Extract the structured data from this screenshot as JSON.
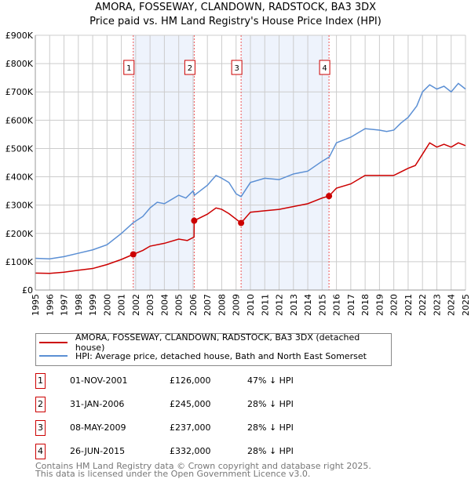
{
  "chart_data": {
    "type": "line",
    "title": "AMORA, FOSSEWAY, CLANDOWN, RADSTOCK, BA3 3DX",
    "subtitle": "Price paid vs. HM Land Registry's House Price Index (HPI)",
    "xlim": [
      1995,
      2025
    ],
    "ylim": [
      0,
      900000
    ],
    "y_ticks": [
      {
        "v": 0,
        "label": "£0"
      },
      {
        "v": 100000,
        "label": "£100K"
      },
      {
        "v": 200000,
        "label": "£200K"
      },
      {
        "v": 300000,
        "label": "£300K"
      },
      {
        "v": 400000,
        "label": "£400K"
      },
      {
        "v": 500000,
        "label": "£500K"
      },
      {
        "v": 600000,
        "label": "£600K"
      },
      {
        "v": 700000,
        "label": "£700K"
      },
      {
        "v": 800000,
        "label": "£800K"
      },
      {
        "v": 900000,
        "label": "£900K"
      }
    ],
    "x_ticks": [
      "1995",
      "1996",
      "1997",
      "1998",
      "1999",
      "2000",
      "2001",
      "2002",
      "2003",
      "2004",
      "2005",
      "2006",
      "2007",
      "2008",
      "2009",
      "2010",
      "2011",
      "2012",
      "2013",
      "2014",
      "2015",
      "2016",
      "2017",
      "2018",
      "2019",
      "2020",
      "2021",
      "2022",
      "2023",
      "2024",
      "2025"
    ],
    "grid": true,
    "series": [
      {
        "name": "AMORA, FOSSEWAY, CLANDOWN, RADSTOCK, BA3 3DX (detached house)",
        "color": "#cc0000",
        "x": [
          1995,
          1996,
          1997,
          1998,
          1999,
          2000,
          2001,
          2001.83,
          2002.5,
          2003,
          2004,
          2005,
          2005.6,
          2006.07,
          2006.08,
          2007,
          2007.6,
          2008,
          2008.5,
          2009.35,
          2010,
          2011,
          2012,
          2013,
          2014,
          2015,
          2015.48,
          2016,
          2017,
          2018,
          2019,
          2020,
          2021,
          2021.5,
          2022,
          2022.5,
          2023,
          2023.5,
          2024,
          2024.5,
          2025
        ],
        "y": [
          60000,
          59000,
          63000,
          70000,
          76000,
          90000,
          108000,
          126000,
          140000,
          155000,
          165000,
          180000,
          175000,
          187000,
          245000,
          268000,
          290000,
          285000,
          270000,
          237000,
          275000,
          280000,
          285000,
          295000,
          305000,
          325000,
          332000,
          360000,
          375000,
          405000,
          405000,
          405000,
          430000,
          440000,
          480000,
          520000,
          505000,
          515000,
          505000,
          520000,
          510000
        ]
      },
      {
        "name": "HPI: Average price, detached house, Bath and North East Somerset",
        "color": "#5b8fd4",
        "x": [
          1995,
          1996,
          1997,
          1998,
          1999,
          2000,
          2001,
          2001.83,
          2002.5,
          2003,
          2003.5,
          2004,
          2005,
          2005.5,
          2006,
          2006.1,
          2007,
          2007.6,
          2008,
          2008.5,
          2009,
          2009.35,
          2010,
          2011,
          2012,
          2013,
          2014,
          2015,
          2015.5,
          2016,
          2016.5,
          2017,
          2018,
          2019,
          2019.5,
          2020,
          2020.5,
          2021,
          2021.6,
          2022,
          2022.5,
          2023,
          2023.5,
          2024,
          2024.5,
          2025
        ],
        "y": [
          112000,
          110000,
          118000,
          130000,
          142000,
          160000,
          200000,
          238000,
          260000,
          290000,
          310000,
          305000,
          335000,
          325000,
          350000,
          335000,
          370000,
          405000,
          395000,
          380000,
          340000,
          330000,
          380000,
          395000,
          390000,
          410000,
          420000,
          455000,
          470000,
          520000,
          530000,
          540000,
          570000,
          565000,
          560000,
          565000,
          590000,
          610000,
          650000,
          700000,
          725000,
          710000,
          720000,
          700000,
          730000,
          710000
        ]
      }
    ],
    "sales": [
      {
        "n": "1",
        "x": 2001.83,
        "y": 126000,
        "date": "01-NOV-2001",
        "price": "£126,000",
        "hpi": "47% ↓ HPI"
      },
      {
        "n": "2",
        "x": 2006.08,
        "y": 245000,
        "date": "31-JAN-2006",
        "price": "£245,000",
        "hpi": "28% ↓ HPI"
      },
      {
        "n": "3",
        "x": 2009.35,
        "y": 237000,
        "date": "08-MAY-2009",
        "price": "£237,000",
        "hpi": "28% ↓ HPI"
      },
      {
        "n": "4",
        "x": 2015.48,
        "y": 332000,
        "date": "26-JUN-2015",
        "price": "£332,000",
        "hpi": "28% ↓ HPI"
      }
    ],
    "shaded_periods": [
      [
        2001.83,
        2006.08
      ],
      [
        2009.35,
        2015.48
      ]
    ]
  },
  "footer": {
    "line1": "Contains HM Land Registry data © Crown copyright and database right 2025.",
    "line2": "This data is licensed under the Open Government Licence v3.0."
  }
}
